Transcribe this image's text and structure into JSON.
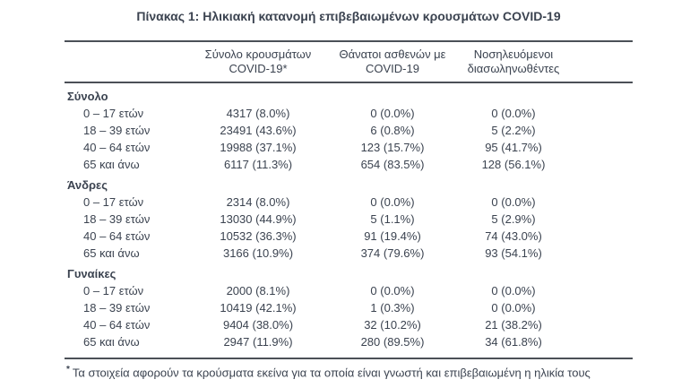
{
  "title": "Πίνακας 1: Ηλικιακή κατανομή επιβεβαιωμένων κρουσμάτων COVID-19",
  "colors": {
    "text": "#3b4350",
    "rule": "#4b5057",
    "background": "#ffffff"
  },
  "table": {
    "column_headers": [
      "Σύνολο κρουσμάτων\nCOVID-19*",
      "Θάνατοι ασθενών με\nCOVID-19",
      "Νοσηλευόμενοι\nδιασωληνωθέντες"
    ],
    "sections": [
      {
        "label": "Σύνολο",
        "rows": [
          {
            "label": "0 – 17 ετών",
            "cases": "4317 (8.0%)",
            "deaths": "0 (0.0%)",
            "intubated": "0 (0.0%)"
          },
          {
            "label": "18 – 39 ετών",
            "cases": "23491 (43.6%)",
            "deaths": "6 (0.8%)",
            "intubated": "5 (2.2%)"
          },
          {
            "label": "40 – 64 ετών",
            "cases": "19988 (37.1%)",
            "deaths": "123 (15.7%)",
            "intubated": "95 (41.7%)"
          },
          {
            "label": "65 και άνω",
            "cases": "6117 (11.3%)",
            "deaths": "654 (83.5%)",
            "intubated": "128 (56.1%)"
          }
        ]
      },
      {
        "label": "Άνδρες",
        "rows": [
          {
            "label": "0 – 17 ετών",
            "cases": "2314 (8.0%)",
            "deaths": "0 (0.0%)",
            "intubated": "0 (0.0%)"
          },
          {
            "label": "18 – 39 ετών",
            "cases": "13030 (44.9%)",
            "deaths": "5 (1.1%)",
            "intubated": "5 (2.9%)"
          },
          {
            "label": "40 – 64 ετών",
            "cases": "10532 (36.3%)",
            "deaths": "91 (19.4%)",
            "intubated": "74 (43.0%)"
          },
          {
            "label": "65 και άνω",
            "cases": "3166 (10.9%)",
            "deaths": "374 (79.6%)",
            "intubated": "93 (54.1%)"
          }
        ]
      },
      {
        "label": "Γυναίκες",
        "rows": [
          {
            "label": "0 – 17 ετών",
            "cases": "2000 (8.1%)",
            "deaths": "0 (0.0%)",
            "intubated": "0 (0.0%)"
          },
          {
            "label": "18 – 39 ετών",
            "cases": "10419 (42.1%)",
            "deaths": "1 (0.3%)",
            "intubated": "0 (0.0%)"
          },
          {
            "label": "40 – 64 ετών",
            "cases": "9404 (38.0%)",
            "deaths": "32 (10.2%)",
            "intubated": "21 (38.2%)"
          },
          {
            "label": "65 και άνω",
            "cases": "2947 (11.9%)",
            "deaths": "280 (89.5%)",
            "intubated": "34 (61.8%)"
          }
        ]
      }
    ]
  },
  "footnote": {
    "marker": "*",
    "text": "Τα στοιχεία αφορούν τα κρούσματα εκείνα για τα οποία είναι γνωστή και επιβεβαιωμένη η ηλικία τους"
  }
}
